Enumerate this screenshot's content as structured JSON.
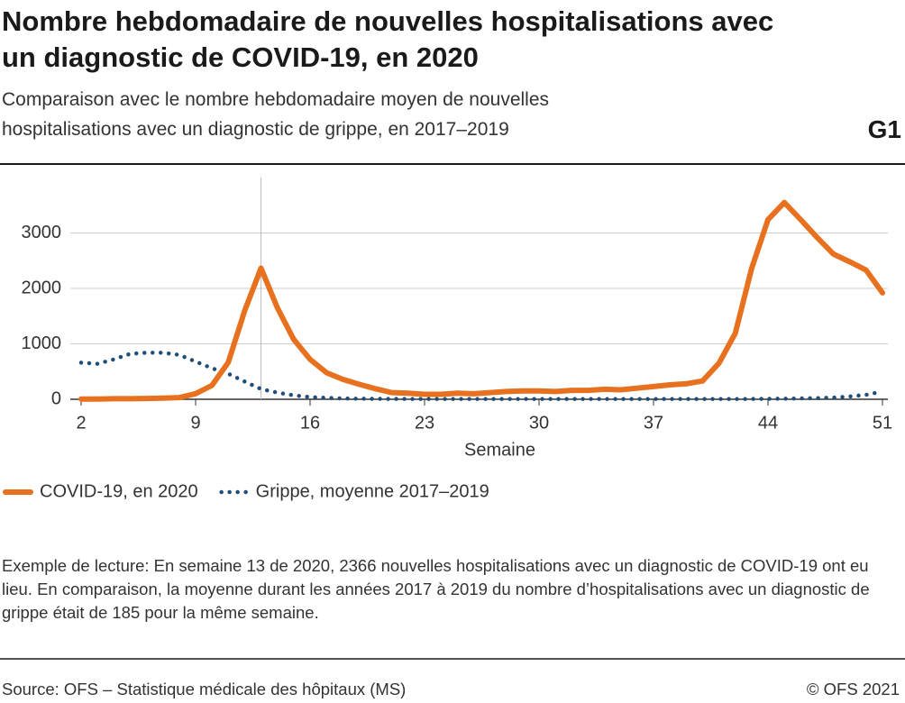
{
  "chart_data": {
    "type": "line",
    "title": "Nombre hebdomadaire de nouvelles hospitalisations avec un diagnostic de COVID-19, en 2020",
    "subtitle": "Comparaison avec le nombre hebdomadaire moyen de nouvelles hospitalisations avec un diagnostic de grippe, en 2017–2019",
    "chart_code": "G1",
    "x_label": "Semaine",
    "x": [
      2,
      3,
      4,
      5,
      6,
      7,
      8,
      9,
      10,
      11,
      12,
      13,
      14,
      15,
      16,
      17,
      18,
      19,
      20,
      21,
      22,
      23,
      24,
      25,
      26,
      27,
      28,
      29,
      30,
      31,
      32,
      33,
      34,
      35,
      36,
      37,
      38,
      39,
      40,
      41,
      42,
      43,
      44,
      45,
      46,
      47,
      48,
      49,
      50,
      51
    ],
    "xlim": [
      2,
      51
    ],
    "xticks": [
      2,
      9,
      16,
      23,
      30,
      37,
      44,
      51
    ],
    "ylim": [
      0,
      4000
    ],
    "yticks": [
      0,
      1000,
      2000,
      3000
    ],
    "grid": true,
    "highlight_x": 13,
    "series": [
      {
        "name": "COVID-19, en 2020",
        "color": "#e8711f",
        "style": "solid",
        "values": [
          5,
          5,
          10,
          10,
          15,
          20,
          30,
          100,
          250,
          668,
          1596,
          2366,
          1650,
          1080,
          720,
          480,
          360,
          270,
          190,
          120,
          110,
          90,
          90,
          110,
          100,
          120,
          140,
          150,
          150,
          140,
          160,
          160,
          180,
          170,
          200,
          230,
          260,
          280,
          330,
          650,
          1190,
          2360,
          3240,
          3550,
          3240,
          2920,
          2620,
          2480,
          2330,
          1920
        ]
      },
      {
        "name": "Grippe, moyenne 2017–2019",
        "color": "#1f4e79",
        "style": "dotted",
        "values": [
          660,
          640,
          720,
          820,
          840,
          840,
          800,
          680,
          560,
          460,
          320,
          185,
          120,
          70,
          40,
          25,
          15,
          10,
          8,
          6,
          5,
          5,
          5,
          5,
          5,
          5,
          5,
          5,
          5,
          5,
          5,
          5,
          5,
          5,
          5,
          5,
          5,
          5,
          5,
          5,
          5,
          5,
          8,
          10,
          15,
          20,
          30,
          50,
          80,
          140
        ]
      }
    ],
    "note": "Exemple de lecture: En semaine 13 de 2020, 2366 nouvelles hospitalisations avec un diagnostic de COVID-19 ont eu lieu. En comparaison, la moyenne durant les années 2017 à 2019 du nombre d’hospitalisations avec un diagnostic de grippe était de 185 pour la même semaine.",
    "source": "Source: OFS – Statistique médicale des hôpitaux (MS)",
    "copyright": "© OFS 2021"
  }
}
